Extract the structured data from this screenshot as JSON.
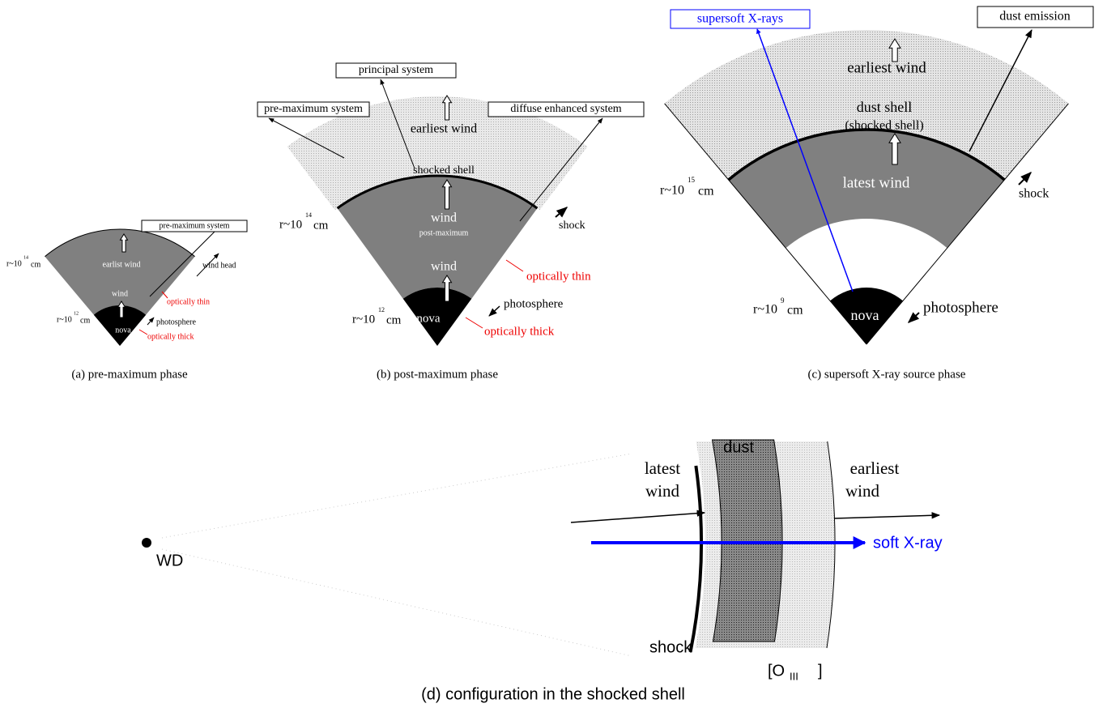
{
  "panel_a": {
    "radius_outer": {
      "base": "r~10",
      "exponent": "14",
      "unit": "cm"
    },
    "radius_inner": {
      "base": "r~10",
      "exponent": "12",
      "unit": "cm"
    },
    "earliest_wind": "earlist wind",
    "wind": "wind",
    "nova": "nova",
    "wind_head": "wind head",
    "system_box": "pre-maximum system",
    "photosphere": "photosphere",
    "optically_thin": "optically thin",
    "optically_thick": "optically thick",
    "caption": "(a) pre-maximum phase"
  },
  "panel_b": {
    "radius_outer": {
      "base": "r~10",
      "exponent": "14",
      "unit": "cm"
    },
    "radius_inner": {
      "base": "r~10",
      "exponent": "12",
      "unit": "cm"
    },
    "principal_box": "principal system",
    "pre_maximum_box": "pre-maximum system",
    "diffuse_box": "diffuse enhanced system",
    "earliest_wind": "earliest wind",
    "shocked_shell": "shocked shell",
    "wind_outer": "wind",
    "post_maximum": "post-maximum",
    "wind_inner": "wind",
    "nova": "nova",
    "shock": "shock",
    "photosphere": "photosphere",
    "optically_thin": "optically thin",
    "optically_thick": "optically thick",
    "caption": "(b) post-maximum phase"
  },
  "panel_c": {
    "radius_outer": {
      "base": "r~10",
      "exponent": "15",
      "unit": "cm"
    },
    "radius_inner": {
      "base": "r~10",
      "exponent": "9",
      "unit": "cm"
    },
    "xray_box": "supersoft X-rays",
    "dust_box": "dust emission",
    "earliest_wind": "earliest wind",
    "dust_shell": "dust shell",
    "shocked_shell": "(shocked shell)",
    "latest_wind": "latest wind",
    "shock": "shock",
    "nova": "nova",
    "photosphere": "photosphere",
    "caption": "(c) supersoft X-ray source phase"
  },
  "panel_d": {
    "dust": "dust",
    "latest": "latest",
    "latest_wind": "wind",
    "earliest": "earliest",
    "earliest_wind": "wind",
    "soft_xray": "soft X-ray",
    "wd": "WD",
    "shock": "shock",
    "oiii": {
      "open": "[O",
      "sub": "III",
      "close": "]"
    },
    "caption": "(d) configuration in the shocked shell"
  }
}
